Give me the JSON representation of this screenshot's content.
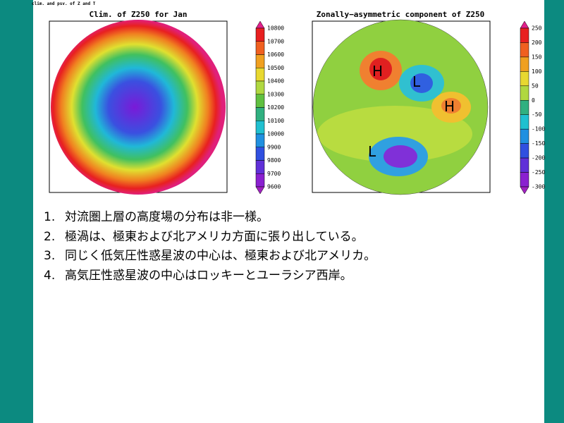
{
  "header": "clim. and psv. of Z and T",
  "panels": [
    {
      "title": "Clim. of Z250 for Jan",
      "colorbar": [
        10800,
        10700,
        10600,
        10500,
        10400,
        10300,
        10200,
        10100,
        10000,
        9900,
        9800,
        9700,
        9600
      ]
    },
    {
      "title": "Zonally−asymmetric component of Z250",
      "colorbar": [
        250,
        200,
        150,
        100,
        50,
        0,
        -50,
        -100,
        -150,
        -200,
        -250,
        -300
      ],
      "labels": [
        "H",
        "L",
        "H",
        "L"
      ]
    }
  ],
  "list": [
    {
      "number": "1.",
      "text": "対流圏上層の高度場の分布は非一様。"
    },
    {
      "number": "2.",
      "text": "極渦は、極東および北アメリカ方面に張り出している。"
    },
    {
      "number": "3.",
      "text": "同じく低気圧性惑星波の中心は、極東および北アメリカ。"
    },
    {
      "number": "4.",
      "text": "高気圧性惑星波の中心はロッキーとユーラシア西岸。"
    }
  ]
}
